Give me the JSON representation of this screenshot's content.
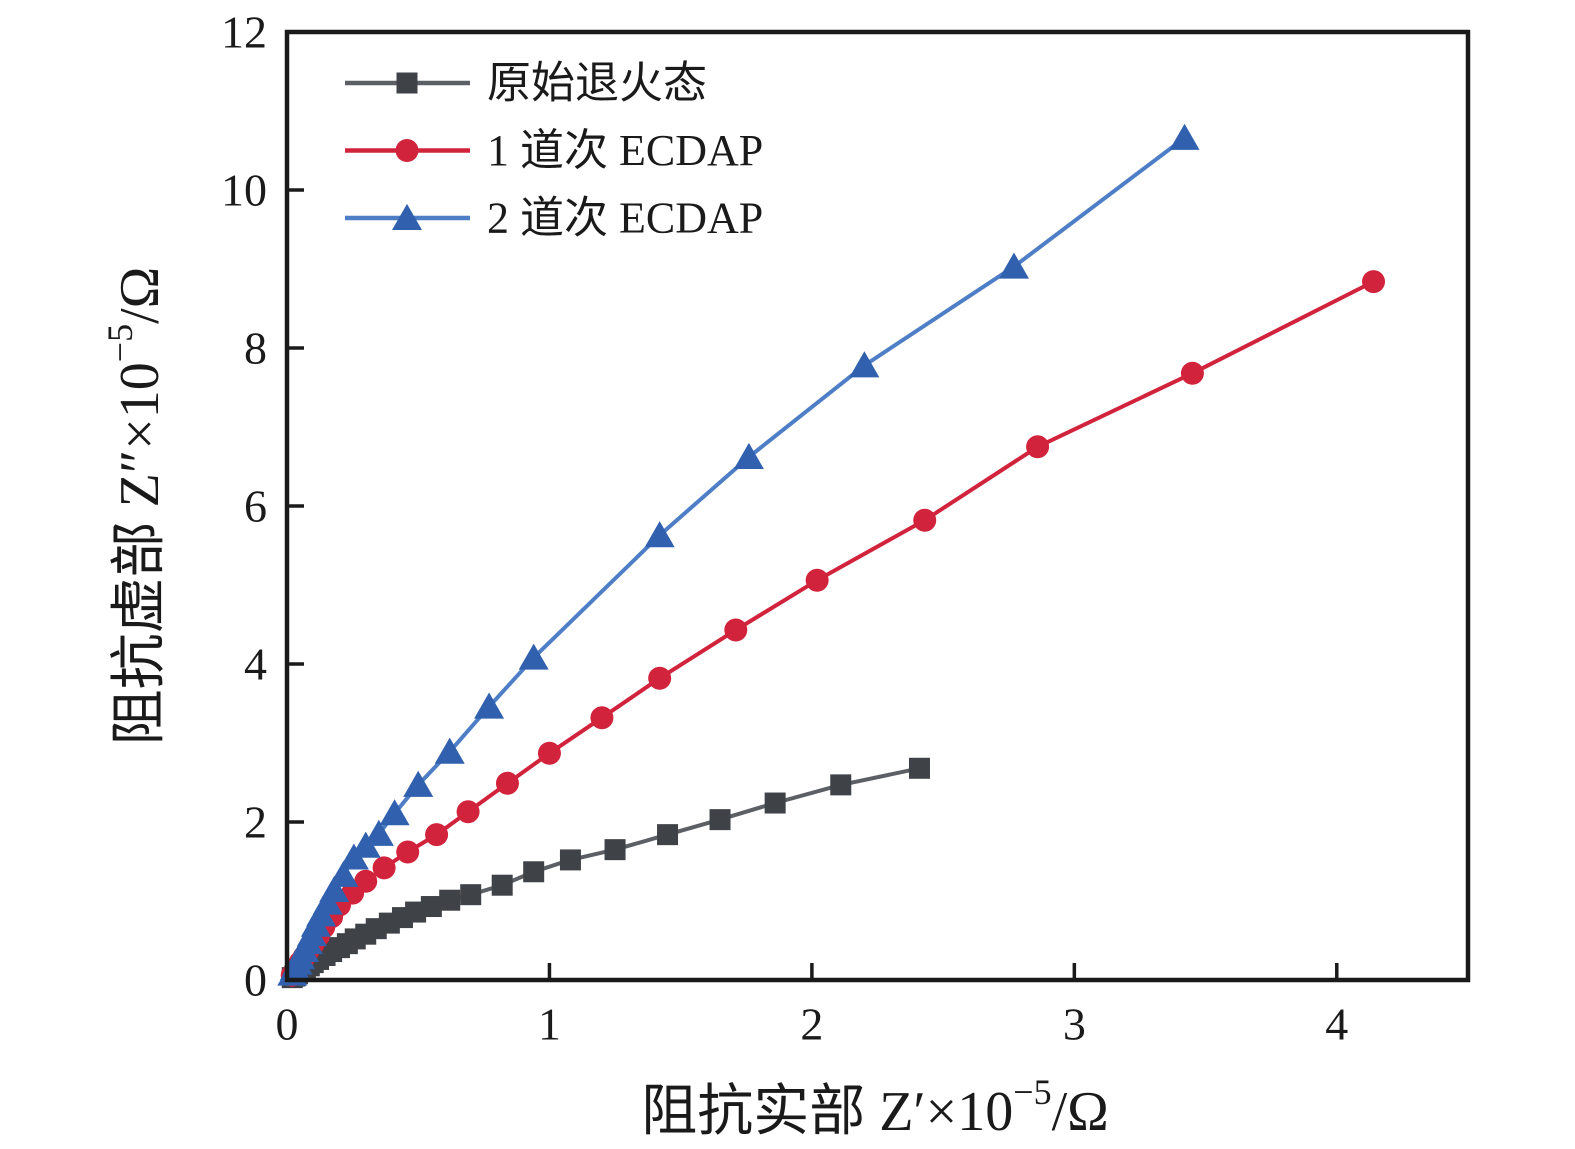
{
  "figure": {
    "background": "#ffffff",
    "axis_color": "#1a1a1a"
  },
  "chart_data": {
    "type": "line",
    "title": "",
    "xlabel": {
      "base": "阻抗实部 Z′×10",
      "sup": "−5",
      "tail": "/Ω"
    },
    "ylabel": {
      "base": "阻抗虚部 Z″×10",
      "sup": "−5",
      "tail": "/Ω"
    },
    "xlim": [
      0,
      4.5
    ],
    "ylim": [
      0,
      12
    ],
    "xticks": [
      "0",
      "1",
      "2",
      "3",
      "4"
    ],
    "xtick_values": [
      0,
      1,
      2,
      3,
      4
    ],
    "yticks": [
      "0",
      "2",
      "4",
      "6",
      "8",
      "10",
      "12"
    ],
    "ytick_values": [
      0,
      2,
      4,
      6,
      8,
      10,
      12
    ],
    "grid": false,
    "legend_position": "top-left",
    "series": [
      {
        "id": "annealed",
        "name": "原始退火态",
        "marker": "square",
        "marker_color": "#3f4347",
        "line_color": "#5c6065",
        "marker_size": 21,
        "points": [
          [
            0.02,
            0.03
          ],
          [
            0.03,
            0.05
          ],
          [
            0.04,
            0.08
          ],
          [
            0.055,
            0.11
          ],
          [
            0.07,
            0.15
          ],
          [
            0.085,
            0.18
          ],
          [
            0.1,
            0.22
          ],
          [
            0.12,
            0.26
          ],
          [
            0.145,
            0.31
          ],
          [
            0.17,
            0.36
          ],
          [
            0.2,
            0.41
          ],
          [
            0.23,
            0.46
          ],
          [
            0.26,
            0.52
          ],
          [
            0.3,
            0.58
          ],
          [
            0.34,
            0.65
          ],
          [
            0.39,
            0.72
          ],
          [
            0.44,
            0.79
          ],
          [
            0.49,
            0.86
          ],
          [
            0.55,
            0.93
          ],
          [
            0.62,
            1.01
          ],
          [
            0.7,
            1.08
          ],
          [
            0.82,
            1.2
          ],
          [
            0.94,
            1.37
          ],
          [
            1.08,
            1.52
          ],
          [
            1.25,
            1.65
          ],
          [
            1.45,
            1.84
          ],
          [
            1.65,
            2.03
          ],
          [
            1.86,
            2.24
          ],
          [
            2.11,
            2.47
          ],
          [
            2.41,
            2.68
          ]
        ]
      },
      {
        "id": "ecdap-1-pass",
        "name": "1 道次 ECDAP",
        "marker": "circle",
        "marker_color": "#d2233c",
        "line_color": "#d2233c",
        "marker_size": 23,
        "points": [
          [
            0.02,
            0.06
          ],
          [
            0.03,
            0.11
          ],
          [
            0.04,
            0.16
          ],
          [
            0.05,
            0.22
          ],
          [
            0.065,
            0.29
          ],
          [
            0.08,
            0.37
          ],
          [
            0.1,
            0.46
          ],
          [
            0.12,
            0.56
          ],
          [
            0.14,
            0.67
          ],
          [
            0.17,
            0.8
          ],
          [
            0.2,
            0.95
          ],
          [
            0.25,
            1.1
          ],
          [
            0.3,
            1.25
          ],
          [
            0.37,
            1.42
          ],
          [
            0.46,
            1.62
          ],
          [
            0.57,
            1.84
          ],
          [
            0.69,
            2.13
          ],
          [
            0.84,
            2.49
          ],
          [
            1.0,
            2.87
          ],
          [
            1.2,
            3.32
          ],
          [
            1.42,
            3.82
          ],
          [
            1.71,
            4.43
          ],
          [
            2.02,
            5.06
          ],
          [
            2.43,
            5.82
          ],
          [
            2.86,
            6.75
          ],
          [
            3.45,
            7.68
          ],
          [
            4.14,
            8.84
          ]
        ]
      },
      {
        "id": "ecdap-2-passes",
        "name": "2 道次 ECDAP",
        "marker": "triangle",
        "marker_color": "#3060ae",
        "line_color": "#4d7ec6",
        "marker_size": 30,
        "points": [
          [
            0.02,
            0.08
          ],
          [
            0.03,
            0.15
          ],
          [
            0.04,
            0.22
          ],
          [
            0.05,
            0.29
          ],
          [
            0.065,
            0.38
          ],
          [
            0.08,
            0.48
          ],
          [
            0.095,
            0.58
          ],
          [
            0.11,
            0.7
          ],
          [
            0.13,
            0.83
          ],
          [
            0.155,
            0.98
          ],
          [
            0.18,
            1.14
          ],
          [
            0.215,
            1.33
          ],
          [
            0.255,
            1.55
          ],
          [
            0.3,
            1.7
          ],
          [
            0.35,
            1.85
          ],
          [
            0.41,
            2.11
          ],
          [
            0.5,
            2.47
          ],
          [
            0.62,
            2.89
          ],
          [
            0.77,
            3.46
          ],
          [
            0.94,
            4.08
          ],
          [
            1.42,
            5.63
          ],
          [
            1.76,
            6.62
          ],
          [
            2.2,
            7.78
          ],
          [
            2.77,
            9.03
          ],
          [
            3.42,
            10.66
          ]
        ]
      }
    ]
  }
}
